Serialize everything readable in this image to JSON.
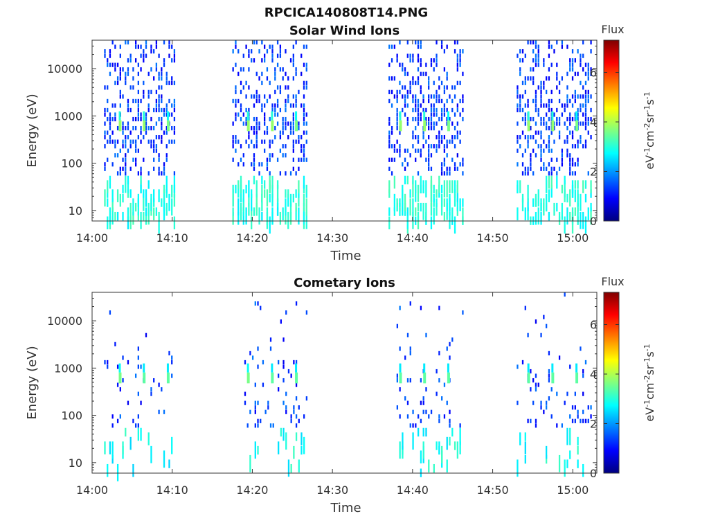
{
  "figure": {
    "title": "RPCICA140808T14.PNG"
  },
  "colormap": {
    "name": "jet",
    "stops": [
      "#00007f",
      "#0000ff",
      "#0080ff",
      "#00ffff",
      "#80ff80",
      "#ffff00",
      "#ff8000",
      "#ff0000",
      "#7f0000"
    ],
    "range": [
      0,
      7.3
    ],
    "ticks": [
      "0",
      "2",
      "4",
      "6"
    ],
    "title": "Flux",
    "unit_parts": [
      "eV",
      "-1",
      "cm",
      "-2",
      "sr",
      "-1",
      "s",
      "-1"
    ]
  },
  "chart_data": [
    {
      "type": "heatmap",
      "title": "Solar Wind Ions",
      "xlabel": "Time",
      "ylabel": "Energy (eV)",
      "xticks": [
        "14:00",
        "14:10",
        "14:20",
        "14:30",
        "14:40",
        "14:50",
        "15:00"
      ],
      "xlim_minutes": [
        0,
        63
      ],
      "yticks": [
        "10",
        "100",
        "1000",
        "10000"
      ],
      "ylim": [
        6,
        40000
      ],
      "yscale": "log",
      "grid": false,
      "activity_windows": [
        {
          "start": "14:01:30",
          "end": "14:10:30"
        },
        {
          "start": "14:17:30",
          "end": "14:27:00"
        },
        {
          "start": "14:37:00",
          "end": "14:46:30"
        },
        {
          "start": "14:53:00",
          "end": "15:02:30"
        }
      ],
      "peaks": [
        {
          "time": "14:03:30",
          "energy_eV": 620,
          "flux": 3.8
        },
        {
          "time": "14:06:30",
          "energy_eV": 620,
          "flux": 3.8
        },
        {
          "time": "14:09:30",
          "energy_eV": 620,
          "flux": 3.6
        },
        {
          "time": "14:19:30",
          "energy_eV": 620,
          "flux": 3.8
        },
        {
          "time": "14:22:30",
          "energy_eV": 620,
          "flux": 3.8
        },
        {
          "time": "14:25:30",
          "energy_eV": 620,
          "flux": 3.6
        },
        {
          "time": "14:38:30",
          "energy_eV": 620,
          "flux": 3.8
        },
        {
          "time": "14:41:30",
          "energy_eV": 620,
          "flux": 3.8
        },
        {
          "time": "14:44:30",
          "energy_eV": 620,
          "flux": 3.6
        },
        {
          "time": "14:54:30",
          "energy_eV": 620,
          "flux": 3.8
        },
        {
          "time": "14:57:30",
          "energy_eV": 620,
          "flux": 3.8
        },
        {
          "time": "15:00:30",
          "energy_eV": 620,
          "flux": 3.6
        }
      ],
      "background_flux": [
        0.8,
        1.8
      ],
      "low_energy_flux": [
        2.6,
        3.3
      ]
    },
    {
      "type": "heatmap",
      "title": "Cometary Ions",
      "xlabel": "Time",
      "ylabel": "Energy (eV)",
      "xticks": [
        "14:00",
        "14:10",
        "14:20",
        "14:30",
        "14:40",
        "14:50",
        "15:00"
      ],
      "xlim_minutes": [
        0,
        63
      ],
      "yticks": [
        "10",
        "100",
        "1000",
        "10000"
      ],
      "ylim": [
        6,
        40000
      ],
      "yscale": "log",
      "grid": false,
      "activity_windows": [
        {
          "start": "14:01:30",
          "end": "14:10:30"
        },
        {
          "start": "14:19:00",
          "end": "14:27:00"
        },
        {
          "start": "14:38:00",
          "end": "14:46:30"
        },
        {
          "start": "14:53:00",
          "end": "15:02:30"
        }
      ],
      "peaks": [
        {
          "time": "14:03:30",
          "energy_eV": 620,
          "flux": 3.6
        },
        {
          "time": "14:06:30",
          "energy_eV": 620,
          "flux": 3.4
        },
        {
          "time": "14:09:30",
          "energy_eV": 620,
          "flux": 3.4
        },
        {
          "time": "14:19:30",
          "energy_eV": 620,
          "flux": 3.6
        },
        {
          "time": "14:22:30",
          "energy_eV": 620,
          "flux": 3.4
        },
        {
          "time": "14:25:30",
          "energy_eV": 620,
          "flux": 3.4
        },
        {
          "time": "14:38:30",
          "energy_eV": 620,
          "flux": 3.4
        },
        {
          "time": "14:41:30",
          "energy_eV": 620,
          "flux": 3.4
        },
        {
          "time": "14:44:30",
          "energy_eV": 620,
          "flux": 3.4
        },
        {
          "time": "14:54:30",
          "energy_eV": 620,
          "flux": 3.4
        },
        {
          "time": "14:57:30",
          "energy_eV": 620,
          "flux": 3.4
        },
        {
          "time": "15:00:30",
          "energy_eV": 620,
          "flux": 3.4
        }
      ],
      "background_flux": [
        0.8,
        1.8
      ],
      "low_energy_flux": [
        2.4,
        3.2
      ]
    }
  ]
}
